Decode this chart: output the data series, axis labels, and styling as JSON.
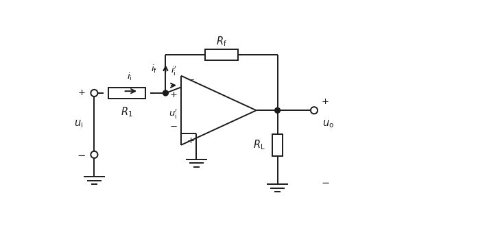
{
  "bg_color": "#ffffff",
  "line_color": "#1a1a1a",
  "figsize": [
    7.29,
    3.36
  ],
  "dpi": 100,
  "lw": 1.4
}
